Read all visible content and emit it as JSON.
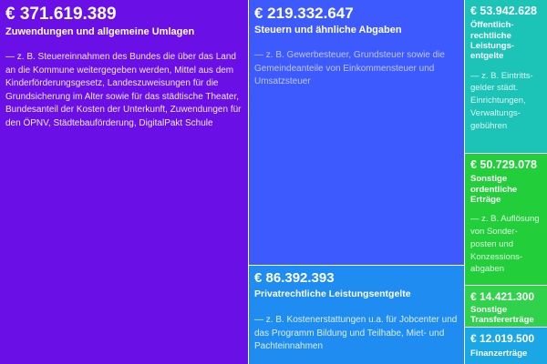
{
  "chart_data": {
    "type": "treemap",
    "currency": "€",
    "series": [
      {
        "name": "Zuwendungen und allgemeine Umlagen",
        "value": 371619389,
        "value_text": "€ 371.619.389",
        "description": "— z. B. Steuereinnahmen des Bundes die über  das Land an die Kommune weitergegeben werden, Mittel aus dem  Kinderförderungsgesetz, Landeszuweisungen für die Grundsicherung im Alter sowie für das städtische Theater, Bundesanteil der Kosten der Unterkunft, Zuwendungen für den ÖPNV, Städtebauförderung, DigitalPakt Schule",
        "color": "#6a0fe6"
      },
      {
        "name": "Steuern und ähnliche Abgaben",
        "value": 219332647,
        "value_text": "€ 219.332.647",
        "description": "— z. B. Gewerbesteuer, Grundsteuer sowie die Gemeindeanteile von Einkommensteuer und Umsatzsteuer",
        "color": "#3d5afe"
      },
      {
        "name": "Privatrechtliche Leistungsentgelte",
        "value": 86392393,
        "value_text": "€ 86.392.393",
        "description": "— z. B. Kostenerstattungen u.a. für Jobcenter und das Programm Bildung und Teilhabe, Miet- und Pachteinnahmen",
        "color": "#1e8cf0"
      },
      {
        "name": "Öffentlich-rechtliche Leistungs-entgelte",
        "value": 53942628,
        "value_text": "€ 53.942.628",
        "description": "— z. B. Eintritts-gelder städt. Einrichtungen, Verwaltungs-gebühren",
        "color": "#1bc4b6"
      },
      {
        "name": "Sonstige ordentliche Erträge",
        "value": 50729078,
        "value_text": "€ 50.729.078",
        "description": "— z. B. Auflösung von Sonder-posten und Konzessions-abgaben",
        "color": "#22cf3a"
      },
      {
        "name": "Sonstige Transfererträge",
        "value": 14421300,
        "value_text": "€ 14.421.300",
        "description": "",
        "color": "#2fd24a"
      },
      {
        "name": "Finanzerträge",
        "value": 12019500,
        "value_text": "€ 12.019.500",
        "description": "",
        "color": "#1ba6e6"
      }
    ]
  }
}
